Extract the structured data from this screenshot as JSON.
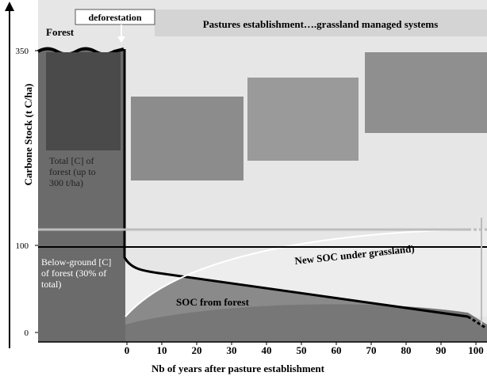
{
  "header": {
    "deforestation": "deforestation",
    "pastures": "Pastures establishment….grassland managed  systems",
    "forest": "Forest"
  },
  "y_axis": {
    "label": "Carbone Stock (t C/ha)",
    "ticks": [
      350,
      100,
      0
    ]
  },
  "x_axis": {
    "label": "Nb of years after pasture establishment",
    "ticks": [
      0,
      10,
      20,
      30,
      40,
      50,
      60,
      70,
      80,
      90,
      100
    ]
  },
  "annotations": {
    "total_forest": "Total [C] of forest (up to 300 t/ha)",
    "below_ground": "Below-ground [C] of forest (30% of total)",
    "new_soc": "New SOC under grassland)",
    "soc_forest": "SOC from forest"
  }
}
